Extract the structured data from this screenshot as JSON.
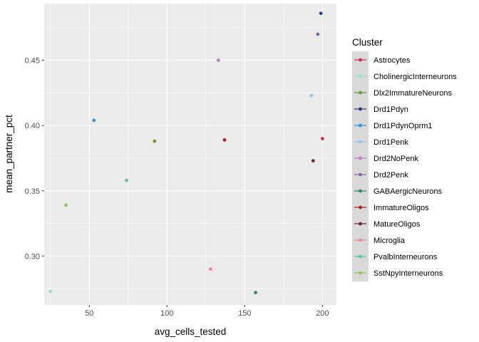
{
  "chart_data": {
    "type": "scatter",
    "xlabel": "avg_cells_tested",
    "ylabel": "mean_partner_pct",
    "xlim": [
      21,
      209
    ],
    "ylim": [
      0.2625,
      0.4935
    ],
    "xticks": [
      50,
      100,
      150,
      200
    ],
    "yticks": [
      0.3,
      0.35,
      0.4,
      0.45
    ],
    "xtick_labels": [
      "50",
      "100",
      "150",
      "200"
    ],
    "ytick_labels": [
      "0.30",
      "0.35",
      "0.40",
      "0.45"
    ],
    "grid": true,
    "legend": {
      "title": "Cluster",
      "placement": "right",
      "entries": [
        {
          "name": "Astrocytes",
          "color": "#d62f43"
        },
        {
          "name": "CholinergicInterneurons",
          "color": "#91e3cc"
        },
        {
          "name": "Dlx2ImmatureNeurons",
          "color": "#6b9c2f"
        },
        {
          "name": "Drd1Pdyn",
          "color": "#213f7a"
        },
        {
          "name": "Drd1PdynOprm1",
          "color": "#3f8fd6"
        },
        {
          "name": "Drd1Penk",
          "color": "#92c4f0"
        },
        {
          "name": "Drd2NoPenk",
          "color": "#c27fcc"
        },
        {
          "name": "Drd2Penk",
          "color": "#8b5fa6"
        },
        {
          "name": "GABAergicNeurons",
          "color": "#2b8a6e"
        },
        {
          "name": "ImmatureOligos",
          "color": "#b02121"
        },
        {
          "name": "MatureOligos",
          "color": "#6e2a2a"
        },
        {
          "name": "Microglia",
          "color": "#f08a8a"
        },
        {
          "name": "PvalbInterneurons",
          "color": "#5dc7a2"
        },
        {
          "name": "SstNpyInterneurons",
          "color": "#8cc84b"
        }
      ]
    },
    "points": [
      {
        "cluster": "Astrocytes",
        "x": 200,
        "y": 0.39,
        "color": "#d62f43"
      },
      {
        "cluster": "CholinergicInterneurons",
        "x": 25,
        "y": 0.273,
        "color": "#91e3cc"
      },
      {
        "cluster": "Dlx2ImmatureNeurons",
        "x": 92,
        "y": 0.388,
        "color": "#6b9c2f"
      },
      {
        "cluster": "Drd1Pdyn",
        "x": 199,
        "y": 0.486,
        "color": "#213f7a"
      },
      {
        "cluster": "Drd1PdynOprm1",
        "x": 53,
        "y": 0.404,
        "color": "#3f8fd6"
      },
      {
        "cluster": "Drd1Penk",
        "x": 193,
        "y": 0.423,
        "color": "#92c4f0"
      },
      {
        "cluster": "Drd2NoPenk",
        "x": 133,
        "y": 0.45,
        "color": "#c27fcc"
      },
      {
        "cluster": "Drd2Penk",
        "x": 197,
        "y": 0.47,
        "color": "#8b5fa6"
      },
      {
        "cluster": "GABAergicNeurons",
        "x": 157,
        "y": 0.272,
        "color": "#2b8a6e"
      },
      {
        "cluster": "ImmatureOligos",
        "x": 137,
        "y": 0.389,
        "color": "#b02121"
      },
      {
        "cluster": "MatureOligos",
        "x": 194,
        "y": 0.373,
        "color": "#6e2a2a"
      },
      {
        "cluster": "Microglia",
        "x": 128,
        "y": 0.29,
        "color": "#f08a8a"
      },
      {
        "cluster": "PvalbInterneurons",
        "x": 74,
        "y": 0.358,
        "color": "#5dc7a2"
      },
      {
        "cluster": "SstNpyInterneurons",
        "x": 35,
        "y": 0.339,
        "color": "#8cc84b"
      }
    ]
  }
}
